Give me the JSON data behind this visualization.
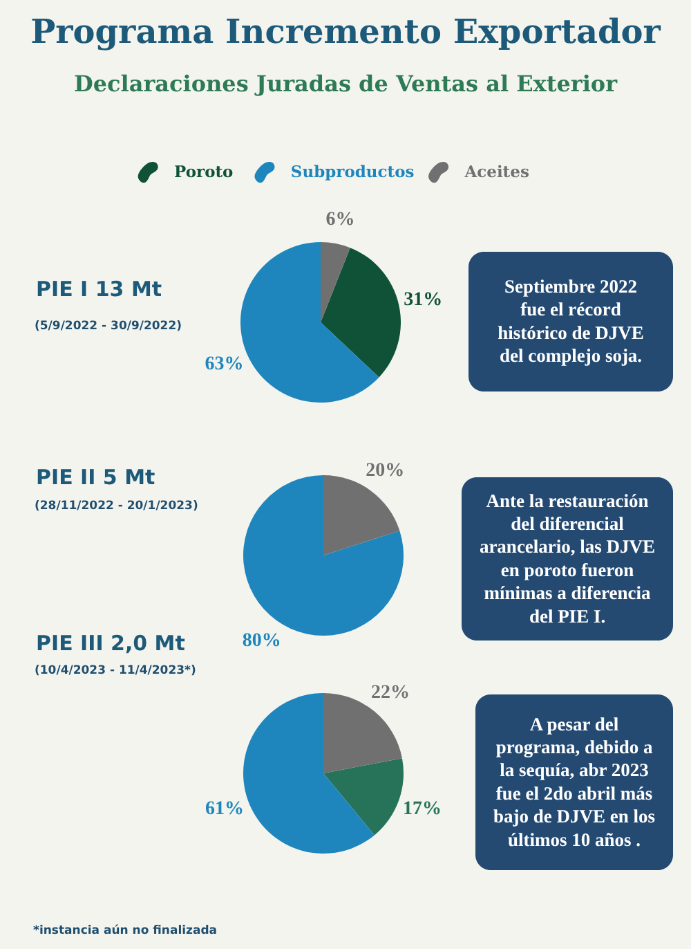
{
  "chart_data": [
    {
      "type": "other",
      "title": "Programa Incremento Exportador",
      "subtitle": "Declaraciones Juradas de Ventas al Exterior"
    },
    {
      "type": "pie",
      "title": "PIE I 13 Mt",
      "subtitle": "(5/9/2022 - 30/9/2022)",
      "categories": [
        "Poroto",
        "Subproductos",
        "Aceites"
      ],
      "values": [
        31,
        63,
        6
      ],
      "value_labels": [
        "31%",
        "63%",
        "6%"
      ],
      "colors": [
        "#0f5238",
        "#1f86bd",
        "#707070"
      ],
      "legend": "top",
      "annotations": [
        "Septiembre 2022 fue el récord histórico de DJVE del complejo soja."
      ]
    },
    {
      "type": "pie",
      "title": "PIE II 5 Mt",
      "subtitle": "(28/11/2022 - 20/1/2023)",
      "categories": [
        null,
        null
      ],
      "values": [
        80,
        20
      ],
      "value_labels": [
        "80%",
        "20%"
      ],
      "colors": [
        "#1f86bd",
        "#707070"
      ],
      "annotations": [
        "Ante la restauración del diferencial arancelario, las DJVE en poroto fueron mínimas a diferencia del PIE I."
      ]
    },
    {
      "type": "pie",
      "title": "PIE III 2,0 Mt",
      "subtitle": "(10/4/2023 - 11/4/2023*)",
      "categories": [
        null,
        null,
        null
      ],
      "values": [
        17,
        61,
        22
      ],
      "value_labels": [
        "17%",
        "61%",
        "22%"
      ],
      "colors": [
        "#27735a",
        "#1f86bd",
        "#707070"
      ],
      "annotations": [
        "A pesar del programa, debido a la sequía, abr 2023 fue el 2do abril más bajo de DJVE en los últimos 10 años .",
        "*instancia aún no finalizada"
      ]
    }
  ]
}
